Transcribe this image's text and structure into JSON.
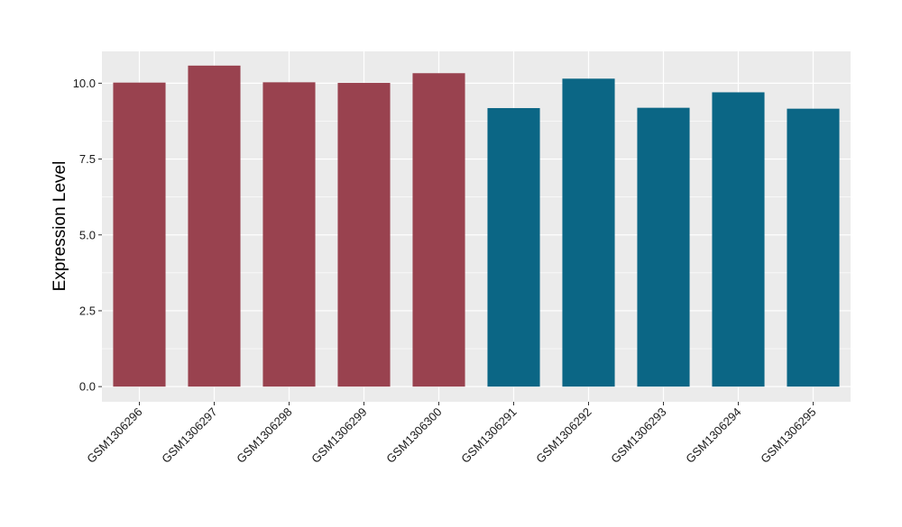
{
  "chart_data": {
    "type": "bar",
    "title": "",
    "xlabel": "",
    "ylabel": "Expression Level",
    "categories": [
      "GSM1306296",
      "GSM1306297",
      "GSM1306298",
      "GSM1306299",
      "GSM1306300",
      "GSM1306291",
      "GSM1306292",
      "GSM1306293",
      "GSM1306294",
      "GSM1306295"
    ],
    "values": [
      10.02,
      10.58,
      10.03,
      10.01,
      10.33,
      9.18,
      10.15,
      9.19,
      9.7,
      9.16
    ],
    "bar_colors": [
      "#99424f",
      "#99424f",
      "#99424f",
      "#99424f",
      "#99424f",
      "#0b6685",
      "#0b6685",
      "#0b6685",
      "#0b6685",
      "#0b6685"
    ],
    "ylim": [
      -0.5,
      11.05
    ],
    "yticks": [
      0,
      2.5,
      5,
      7.5,
      10
    ],
    "ytick_labels": [
      "0.0",
      "2.5",
      "5.0",
      "7.5",
      "10.0"
    ],
    "grid": true,
    "panel_background": "#ebebeb",
    "grid_color": "#ffffff",
    "legend": "none"
  }
}
